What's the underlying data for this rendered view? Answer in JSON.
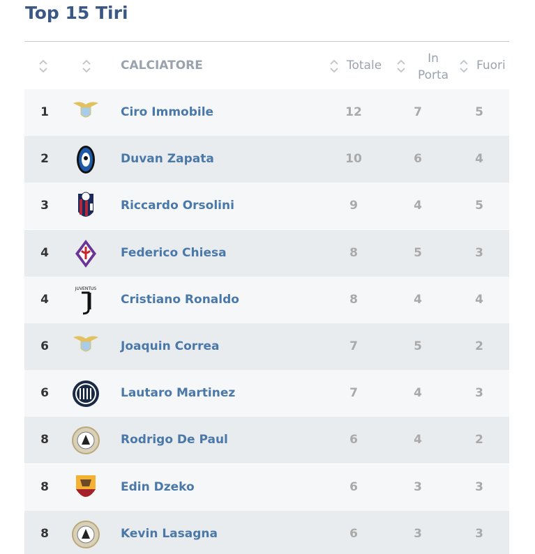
{
  "title": "Top 15 Tiri",
  "table": {
    "columns": [
      "CALCIATORE",
      "Totale",
      "In Porta",
      "Fuori"
    ],
    "rows": [
      {
        "rank": 1,
        "player": "Ciro Immobile",
        "totale": 12,
        "in_porta": 7,
        "fuori": 5
      },
      {
        "rank": 2,
        "player": "Duvan Zapata",
        "totale": 10,
        "in_porta": 6,
        "fuori": 4
      },
      {
        "rank": 3,
        "player": "Riccardo Orsolini",
        "totale": 9,
        "in_porta": 4,
        "fuori": 5
      },
      {
        "rank": 4,
        "player": "Federico Chiesa",
        "totale": 8,
        "in_porta": 5,
        "fuori": 3
      },
      {
        "rank": 4,
        "player": "Cristiano Ronaldo",
        "totale": 8,
        "in_porta": 4,
        "fuori": 4
      },
      {
        "rank": 6,
        "player": "Joaquin Correa",
        "totale": 7,
        "in_porta": 5,
        "fuori": 2
      },
      {
        "rank": 6,
        "player": "Lautaro Martinez",
        "totale": 7,
        "in_porta": 4,
        "fuori": 3
      },
      {
        "rank": 8,
        "player": "Rodrigo De Paul",
        "totale": 6,
        "in_porta": 4,
        "fuori": 2
      },
      {
        "rank": 8,
        "player": "Edin Dzeko",
        "totale": 6,
        "in_porta": 3,
        "fuori": 3
      },
      {
        "rank": 8,
        "player": "Kevin Lasagna",
        "totale": 6,
        "in_porta": 3,
        "fuori": 3
      }
    ]
  }
}
